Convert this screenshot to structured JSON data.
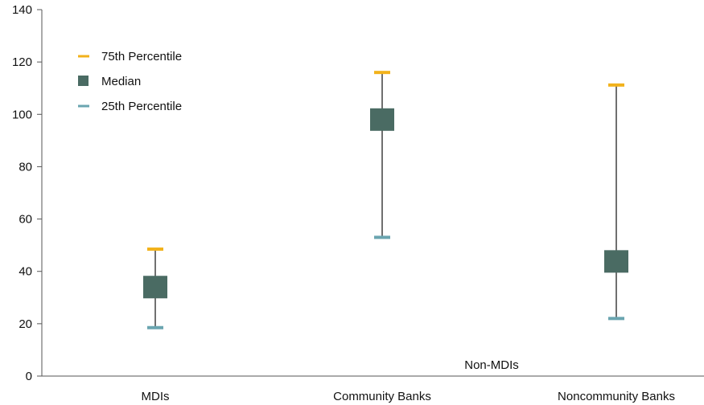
{
  "chart_data": {
    "type": "range-marker",
    "ylim": [
      0,
      140
    ],
    "yticks": [
      0,
      20,
      40,
      60,
      80,
      100,
      120,
      140
    ],
    "y_tick_labels": [
      "0",
      "20",
      "40",
      "60",
      "80",
      "100",
      "120",
      "140"
    ],
    "grid": false,
    "legend_position": "top-left",
    "categories": [
      "MDIs",
      "Community Banks",
      "Noncommunity Banks"
    ],
    "series": [
      {
        "name": "75th Percentile",
        "values": [
          48.5,
          116,
          111.2
        ],
        "color": "#f2b21b",
        "marker": "dash"
      },
      {
        "name": "Median",
        "values": [
          34,
          98,
          43.8
        ],
        "color": "#4a6b63",
        "marker": "square"
      },
      {
        "name": "25th Percentile",
        "values": [
          18.5,
          53,
          22
        ],
        "color": "#6aa5b0",
        "marker": "dash"
      }
    ],
    "annotations": [
      {
        "text": "Non-MDIs",
        "spans_categories": [
          "Community Banks",
          "Noncommunity Banks"
        ]
      }
    ]
  }
}
